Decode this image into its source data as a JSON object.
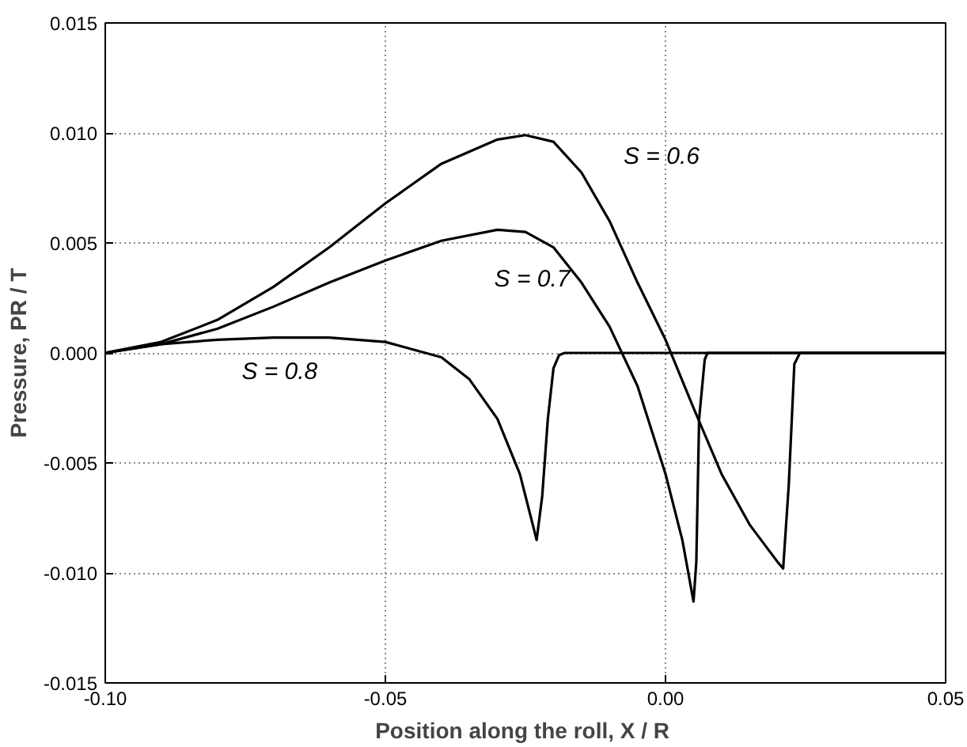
{
  "chart_data": {
    "type": "line",
    "xlabel": "Position along the roll,  X / R",
    "ylabel": "Pressure, PR / T",
    "xlim": [
      -0.1,
      0.05
    ],
    "xticks": [
      {
        "value": -0.1,
        "label": "-0.10"
      },
      {
        "value": -0.05,
        "label": "-0.05"
      },
      {
        "value": 0,
        "label": "0.00"
      },
      {
        "value": 0.05,
        "label": "0.05"
      }
    ],
    "ylim": [
      -0.015,
      0.015
    ],
    "yticks": [
      {
        "value": -0.015,
        "label": "-0.015"
      },
      {
        "value": -0.01,
        "label": "-0.010"
      },
      {
        "value": -0.005,
        "label": "-0.005"
      },
      {
        "value": 0,
        "label": "0.000"
      },
      {
        "value": 0.005,
        "label": "0.005"
      },
      {
        "value": 0.01,
        "label": "0.010"
      },
      {
        "value": 0.015,
        "label": "0.015"
      }
    ],
    "grid": true,
    "marker": "none",
    "line_style": "solid",
    "series": [
      {
        "name": "S = 0.6",
        "color": "#000000",
        "x": [
          -0.1,
          -0.09,
          -0.08,
          -0.07,
          -0.06,
          -0.05,
          -0.04,
          -0.03,
          -0.025,
          -0.02,
          -0.015,
          -0.01,
          -0.005,
          0.0,
          0.005,
          0.01,
          0.015,
          0.02,
          0.021,
          0.022,
          0.023,
          0.024,
          0.05
        ],
        "values": [
          0,
          0.0005,
          0.0015,
          0.003,
          0.0048,
          0.0068,
          0.0086,
          0.0097,
          0.0099,
          0.0096,
          0.0082,
          0.006,
          0.0032,
          0.0006,
          -0.0025,
          -0.0055,
          -0.0078,
          -0.0095,
          -0.0098,
          -0.006,
          -0.0005,
          0,
          0
        ]
      },
      {
        "name": "S = 0.7",
        "color": "#000000",
        "x": [
          -0.1,
          -0.09,
          -0.08,
          -0.07,
          -0.06,
          -0.05,
          -0.04,
          -0.03,
          -0.025,
          -0.02,
          -0.015,
          -0.01,
          -0.005,
          0.0,
          0.003,
          0.005,
          0.0055,
          0.006,
          0.007,
          0.0075,
          0.05
        ],
        "values": [
          0,
          0.0004,
          0.0011,
          0.0021,
          0.0032,
          0.0042,
          0.0051,
          0.0056,
          0.0055,
          0.0048,
          0.0032,
          0.0012,
          -0.0015,
          -0.0055,
          -0.0085,
          -0.0113,
          -0.0095,
          -0.003,
          -0.0003,
          0,
          0
        ]
      },
      {
        "name": "S = 0.8",
        "color": "#000000",
        "x": [
          -0.1,
          -0.09,
          -0.08,
          -0.07,
          -0.06,
          -0.05,
          -0.04,
          -0.035,
          -0.03,
          -0.026,
          -0.024,
          -0.023,
          -0.022,
          -0.021,
          -0.02,
          -0.019,
          -0.018,
          0.05
        ],
        "values": [
          0,
          0.0004,
          0.0006,
          0.0007,
          0.0007,
          0.0005,
          -0.0002,
          -0.0012,
          -0.003,
          -0.0055,
          -0.0075,
          -0.0085,
          -0.0065,
          -0.003,
          -0.0007,
          -0.0001,
          0,
          0
        ]
      }
    ]
  }
}
